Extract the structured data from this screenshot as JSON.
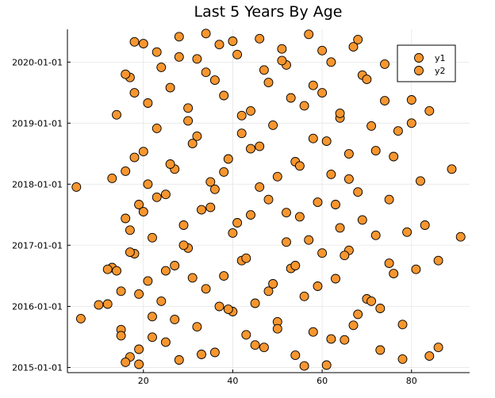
{
  "chart_data": {
    "type": "scatter",
    "title": "Last 5 Years By Age",
    "xlabel": "",
    "ylabel": "",
    "xlim": [
      3,
      93
    ],
    "ylim": [
      "2014-12-01",
      "2020-07-15"
    ],
    "x_ticks": [
      20,
      40,
      60,
      80
    ],
    "x_tick_labels": [
      "20",
      "40",
      "60",
      "80"
    ],
    "y_ticks": [
      "2015-01-01",
      "2016-01-01",
      "2017-01-01",
      "2018-01-01",
      "2019-01-01",
      "2020-01-01"
    ],
    "y_tick_labels": [
      "2015-01-01",
      "2016-01-01",
      "2017-01-01",
      "2018-01-01",
      "2019-01-01",
      "2020-01-01"
    ],
    "grid": true,
    "legend_position": "top-right",
    "marker_color": "#f7962f",
    "marker_edge_color": "#000000",
    "series": [
      {
        "name": "y1",
        "points": [
          [
            6,
            "2015-10-20"
          ],
          [
            12,
            "2016-01-15"
          ],
          [
            13,
            "2016-08-20"
          ],
          [
            14,
            "2016-08-01"
          ],
          [
            14,
            "2019-02-20"
          ],
          [
            15,
            "2015-08-15"
          ],
          [
            15,
            "2016-04-01"
          ],
          [
            16,
            "2017-06-10"
          ],
          [
            16,
            "2018-03-20"
          ],
          [
            17,
            "2019-10-01"
          ],
          [
            17,
            "2015-03-05"
          ],
          [
            18,
            "2016-11-11"
          ],
          [
            18,
            "2020-05-01"
          ],
          [
            19,
            "2017-09-01"
          ],
          [
            19,
            "2015-01-20"
          ],
          [
            20,
            "2018-07-15"
          ],
          [
            21,
            "2016-06-01"
          ],
          [
            21,
            "2019-05-01"
          ],
          [
            22,
            "2015-11-01"
          ],
          [
            22,
            "2017-02-15"
          ],
          [
            23,
            "2020-03-01"
          ],
          [
            23,
            "2018-12-01"
          ],
          [
            24,
            "2016-02-01"
          ],
          [
            25,
            "2017-11-01"
          ],
          [
            25,
            "2015-06-01"
          ],
          [
            26,
            "2019-08-01"
          ],
          [
            27,
            "2016-09-01"
          ],
          [
            27,
            "2018-04-01"
          ],
          [
            28,
            "2020-06-01"
          ],
          [
            28,
            "2015-02-15"
          ],
          [
            29,
            "2017-05-01"
          ],
          [
            30,
            "2019-01-15"
          ],
          [
            30,
            "2016-12-15"
          ],
          [
            31,
            "2018-09-01"
          ],
          [
            32,
            "2015-09-01"
          ],
          [
            32,
            "2020-01-20"
          ],
          [
            33,
            "2017-08-01"
          ],
          [
            34,
            "2016-04-15"
          ],
          [
            34,
            "2019-11-01"
          ],
          [
            35,
            "2018-01-15"
          ],
          [
            36,
            "2015-04-01"
          ],
          [
            36,
            "2017-12-01"
          ],
          [
            37,
            "2020-04-15"
          ],
          [
            38,
            "2016-07-01"
          ],
          [
            38,
            "2019-06-15"
          ],
          [
            39,
            "2018-06-01"
          ],
          [
            40,
            "2015-12-01"
          ],
          [
            40,
            "2017-03-15"
          ],
          [
            41,
            "2020-02-15"
          ],
          [
            42,
            "2016-10-01"
          ],
          [
            42,
            "2018-11-01"
          ],
          [
            43,
            "2015-07-15"
          ],
          [
            44,
            "2019-03-15"
          ],
          [
            44,
            "2017-07-01"
          ],
          [
            45,
            "2016-01-20"
          ],
          [
            46,
            "2018-08-15"
          ],
          [
            46,
            "2020-05-20"
          ],
          [
            47,
            "2015-05-01"
          ],
          [
            48,
            "2017-10-01"
          ],
          [
            48,
            "2019-09-01"
          ],
          [
            49,
            "2016-05-15"
          ],
          [
            50,
            "2018-02-15"
          ],
          [
            50,
            "2015-10-01"
          ],
          [
            51,
            "2020-03-20"
          ],
          [
            52,
            "2017-01-20"
          ],
          [
            52,
            "2019-12-15"
          ],
          [
            53,
            "2016-08-15"
          ],
          [
            54,
            "2018-05-15"
          ],
          [
            54,
            "2015-03-15"
          ],
          [
            55,
            "2017-06-20"
          ],
          [
            56,
            "2019-04-15"
          ],
          [
            56,
            "2016-03-01"
          ],
          [
            57,
            "2020-06-15"
          ],
          [
            58,
            "2018-10-01"
          ],
          [
            58,
            "2015-08-01"
          ],
          [
            59,
            "2017-09-15"
          ],
          [
            60,
            "2016-11-15"
          ],
          [
            60,
            "2019-07-01"
          ],
          [
            61,
            "2015-01-15"
          ],
          [
            62,
            "2018-03-01"
          ],
          [
            62,
            "2020-01-01"
          ],
          [
            63,
            "2016-06-15"
          ],
          [
            64,
            "2017-04-15"
          ],
          [
            64,
            "2019-02-01"
          ],
          [
            65,
            "2015-06-15"
          ],
          [
            66,
            "2018-07-01"
          ],
          [
            66,
            "2016-12-01"
          ],
          [
            67,
            "2020-04-01"
          ],
          [
            68,
            "2017-11-15"
          ],
          [
            68,
            "2015-11-15"
          ],
          [
            69,
            "2019-10-15"
          ],
          [
            70,
            "2016-02-15"
          ],
          [
            71,
            "2018-12-15"
          ],
          [
            72,
            "2017-03-01"
          ],
          [
            73,
            "2015-04-15"
          ],
          [
            74,
            "2019-05-15"
          ],
          [
            75,
            "2016-09-15"
          ],
          [
            76,
            "2018-06-15"
          ],
          [
            78,
            "2015-09-15"
          ],
          [
            80,
            "2019-01-01"
          ]
        ]
      },
      {
        "name": "y2",
        "points": [
          [
            16,
            "2015-02-01"
          ],
          [
            17,
            "2017-04-01"
          ],
          [
            18,
            "2019-07-01"
          ],
          [
            19,
            "2016-03-15"
          ],
          [
            20,
            "2020-04-20"
          ],
          [
            21,
            "2018-01-01"
          ],
          [
            22,
            "2015-07-01"
          ],
          [
            23,
            "2017-10-15"
          ],
          [
            24,
            "2019-12-01"
          ],
          [
            25,
            "2016-08-01"
          ],
          [
            26,
            "2018-05-01"
          ],
          [
            27,
            "2015-10-15"
          ],
          [
            28,
            "2020-02-01"
          ],
          [
            29,
            "2017-01-01"
          ],
          [
            30,
            "2019-04-01"
          ],
          [
            31,
            "2016-06-20"
          ],
          [
            32,
            "2018-10-15"
          ],
          [
            33,
            "2015-03-20"
          ],
          [
            34,
            "2020-06-20"
          ],
          [
            35,
            "2017-08-15"
          ],
          [
            36,
            "2019-09-15"
          ],
          [
            37,
            "2016-01-01"
          ],
          [
            38,
            "2018-03-15"
          ],
          [
            39,
            "2015-12-15"
          ],
          [
            40,
            "2020-05-05"
          ],
          [
            41,
            "2017-05-15"
          ],
          [
            42,
            "2019-02-15"
          ],
          [
            43,
            "2016-10-15"
          ],
          [
            44,
            "2018-08-01"
          ],
          [
            45,
            "2015-05-15"
          ],
          [
            46,
            "2017-12-15"
          ],
          [
            47,
            "2019-11-15"
          ],
          [
            48,
            "2016-04-01"
          ],
          [
            49,
            "2018-12-20"
          ],
          [
            50,
            "2015-08-20"
          ],
          [
            51,
            "2020-01-10"
          ],
          [
            52,
            "2017-07-15"
          ],
          [
            53,
            "2019-06-01"
          ],
          [
            54,
            "2016-09-01"
          ],
          [
            55,
            "2018-04-20"
          ],
          [
            56,
            "2015-01-10"
          ],
          [
            57,
            "2017-02-01"
          ],
          [
            58,
            "2019-08-15"
          ],
          [
            59,
            "2016-05-01"
          ],
          [
            60,
            "2020-03-10"
          ],
          [
            61,
            "2018-09-15"
          ],
          [
            62,
            "2015-06-20"
          ],
          [
            63,
            "2017-09-01"
          ],
          [
            64,
            "2019-03-01"
          ],
          [
            65,
            "2016-11-01"
          ],
          [
            66,
            "2018-02-01"
          ],
          [
            67,
            "2015-09-10"
          ],
          [
            68,
            "2020-05-15"
          ],
          [
            69,
            "2017-06-01"
          ],
          [
            70,
            "2019-09-20"
          ],
          [
            71,
            "2016-02-01"
          ],
          [
            72,
            "2018-07-20"
          ],
          [
            73,
            "2015-12-20"
          ],
          [
            74,
            "2019-12-20"
          ],
          [
            75,
            "2017-10-01"
          ],
          [
            76,
            "2016-07-15"
          ],
          [
            77,
            "2018-11-15"
          ],
          [
            78,
            "2015-02-20"
          ],
          [
            79,
            "2017-03-20"
          ],
          [
            80,
            "2019-05-20"
          ],
          [
            81,
            "2016-08-10"
          ],
          [
            82,
            "2018-01-20"
          ],
          [
            83,
            "2017-05-01"
          ],
          [
            84,
            "2019-03-15"
          ],
          [
            84,
            "2015-03-10"
          ],
          [
            86,
            "2016-10-01"
          ],
          [
            86,
            "2015-05-01"
          ],
          [
            89,
            "2018-04-01"
          ],
          [
            91,
            "2017-02-20"
          ],
          [
            5,
            "2017-12-15"
          ],
          [
            10,
            "2016-01-10"
          ],
          [
            12,
            "2016-08-10"
          ],
          [
            13,
            "2018-02-05"
          ],
          [
            15,
            "2015-07-10"
          ],
          [
            16,
            "2019-10-20"
          ],
          [
            17,
            "2016-11-20"
          ],
          [
            18,
            "2018-06-10"
          ],
          [
            19,
            "2015-04-20"
          ],
          [
            20,
            "2017-07-20"
          ]
        ]
      }
    ]
  }
}
